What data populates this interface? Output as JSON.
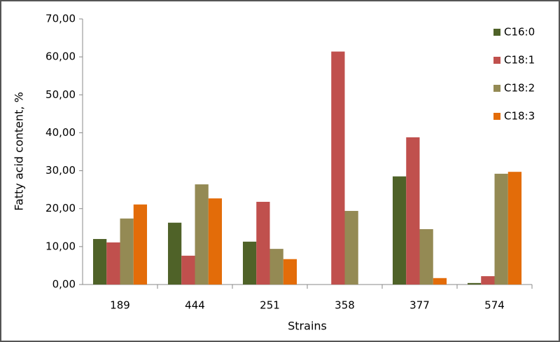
{
  "chart_data": {
    "type": "bar",
    "x_label": "Strains",
    "y_label": "Fatty acid content, %",
    "categories": [
      "189",
      "444",
      "251",
      "358",
      "377",
      "574"
    ],
    "series": [
      {
        "name": "C16:0",
        "color": "#4f6228",
        "values": [
          12.0,
          16.3,
          11.3,
          0,
          28.5,
          0.4
        ]
      },
      {
        "name": "C18:1",
        "color": "#c0504d",
        "values": [
          11.1,
          7.6,
          21.8,
          61.4,
          38.8,
          2.2
        ]
      },
      {
        "name": "C18:2",
        "color": "#948a54",
        "values": [
          17.4,
          26.4,
          9.4,
          19.4,
          14.6,
          29.2
        ]
      },
      {
        "name": "C18:3",
        "color": "#e36c09",
        "values": [
          21.1,
          22.7,
          6.7,
          0,
          1.7,
          29.7
        ]
      }
    ],
    "ylim": [
      0,
      70
    ],
    "yticks": [
      {
        "value": 0,
        "label": "0,00"
      },
      {
        "value": 10,
        "label": "10,00"
      },
      {
        "value": 20,
        "label": "20,00"
      },
      {
        "value": 30,
        "label": "30,00"
      },
      {
        "value": 40,
        "label": "40,00"
      },
      {
        "value": 50,
        "label": "50,00"
      },
      {
        "value": 60,
        "label": "60,00"
      },
      {
        "value": 70,
        "label": "70,00"
      }
    ],
    "legend": "right"
  }
}
